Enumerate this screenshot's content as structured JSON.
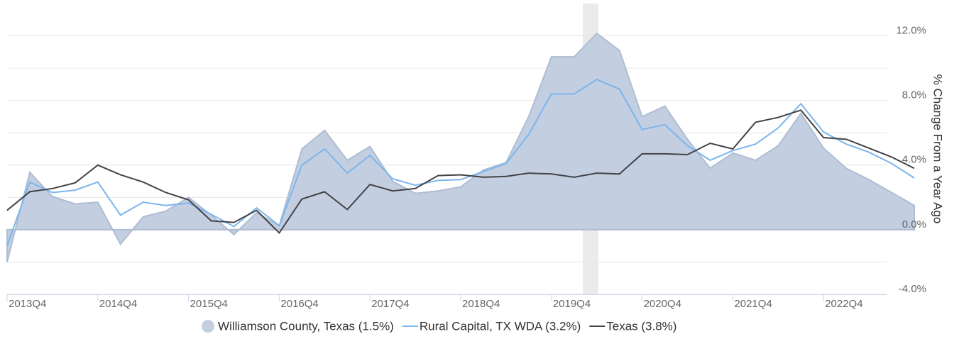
{
  "chart_data": {
    "type": "line",
    "y_axis_label": "% Change From a Year Ago",
    "categories": [
      "2013Q4",
      null,
      null,
      null,
      "2014Q4",
      null,
      null,
      null,
      "2015Q4",
      null,
      null,
      null,
      "2016Q4",
      null,
      null,
      null,
      "2017Q4",
      null,
      null,
      null,
      "2018Q4",
      null,
      null,
      null,
      "2019Q4",
      null,
      null,
      null,
      "2020Q4",
      null,
      null,
      null,
      "2021Q4",
      null,
      null,
      null,
      "2022Q4",
      null,
      null,
      null,
      null
    ],
    "series": [
      {
        "name": "Williamson County, Texas (1.5%)",
        "kind": "area",
        "color": "#c3cfe0",
        "values": [
          -2.0,
          3.55,
          2.05,
          1.6,
          1.7,
          -0.9,
          0.8,
          1.15,
          2.0,
          0.9,
          -0.3,
          1.05,
          0.25,
          5.0,
          6.15,
          4.3,
          5.15,
          3.0,
          2.25,
          2.4,
          2.65,
          3.7,
          4.15,
          7.0,
          10.7,
          10.7,
          12.15,
          11.1,
          7.0,
          7.65,
          5.6,
          3.8,
          4.75,
          4.3,
          5.2,
          7.2,
          5.05,
          3.8,
          3.1,
          2.3,
          1.5
        ]
      },
      {
        "name": "Rural Capital, TX WDA (3.2%)",
        "kind": "line",
        "color": "#7cb5ec",
        "values": [
          -1.0,
          2.95,
          2.3,
          2.45,
          2.95,
          0.9,
          1.7,
          1.5,
          1.65,
          0.95,
          0.2,
          1.35,
          0.25,
          4.0,
          5.0,
          3.5,
          4.6,
          3.15,
          2.75,
          3.05,
          3.1,
          3.6,
          4.1,
          5.9,
          8.4,
          8.4,
          9.3,
          8.7,
          6.2,
          6.5,
          5.2,
          4.3,
          4.9,
          5.3,
          6.3,
          7.8,
          6.05,
          5.3,
          4.8,
          4.1,
          3.2
        ]
      },
      {
        "name": "Texas (3.8%)",
        "kind": "line",
        "color": "#434348",
        "values": [
          1.2,
          2.35,
          2.55,
          2.9,
          4.0,
          3.4,
          2.95,
          2.3,
          1.85,
          0.55,
          0.45,
          1.2,
          -0.2,
          1.9,
          2.35,
          1.25,
          2.8,
          2.4,
          2.55,
          3.35,
          3.4,
          3.25,
          3.3,
          3.5,
          3.45,
          3.25,
          3.5,
          3.45,
          4.7,
          4.7,
          4.65,
          5.35,
          5.0,
          6.65,
          6.95,
          7.4,
          5.7,
          5.6,
          5.05,
          4.5,
          3.8
        ]
      }
    ],
    "ylim": [
      -4,
      14
    ],
    "yticks": [
      {
        "value": -4,
        "label": "-4.0%"
      },
      {
        "value": 0,
        "label": "0.0%"
      },
      {
        "value": 4,
        "label": "4.0%"
      },
      {
        "value": 8,
        "label": "8.0%"
      },
      {
        "value": 12,
        "label": "12.0%"
      }
    ],
    "minor_yticks": [
      -2,
      2,
      6,
      10
    ],
    "grid": true
  }
}
